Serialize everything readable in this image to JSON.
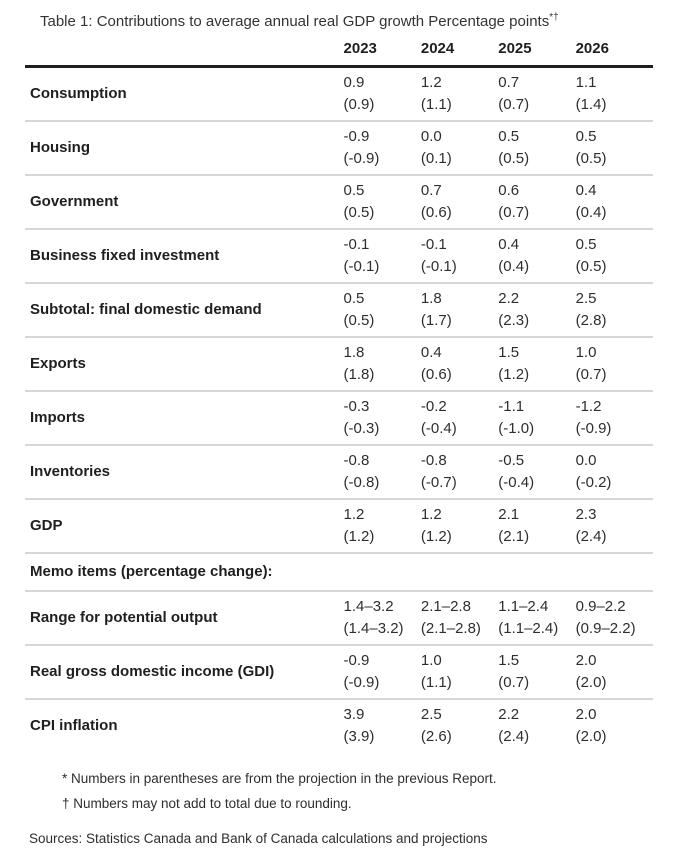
{
  "title": {
    "text": "Table 1: Contributions to average annual real GDP growth Percentage points",
    "superscript": "*†"
  },
  "chart_data": {
    "type": "table",
    "title": "Table 1: Contributions to average annual real GDP growth",
    "units": "Percentage points",
    "footnote_markers": "*†",
    "columns": [
      "2023",
      "2024",
      "2025",
      "2026"
    ],
    "rows": [
      {
        "type": "data",
        "label": "Consumption",
        "current": [
          "0.9",
          "1.2",
          "0.7",
          "1.1"
        ],
        "previous": [
          "(0.9)",
          "(1.1)",
          "(0.7)",
          "(1.4)"
        ]
      },
      {
        "type": "data",
        "label": "Housing",
        "current": [
          "-0.9",
          "0.0",
          "0.5",
          "0.5"
        ],
        "previous": [
          "(-0.9)",
          "(0.1)",
          "(0.5)",
          "(0.5)"
        ]
      },
      {
        "type": "data",
        "label": "Government",
        "current": [
          "0.5",
          "0.7",
          "0.6",
          "0.4"
        ],
        "previous": [
          "(0.5)",
          "(0.6)",
          "(0.7)",
          "(0.4)"
        ]
      },
      {
        "type": "data",
        "label": "Business fixed investment",
        "current": [
          "-0.1",
          "-0.1",
          "0.4",
          "0.5"
        ],
        "previous": [
          "(-0.1)",
          "(-0.1)",
          "(0.4)",
          "(0.5)"
        ]
      },
      {
        "type": "data",
        "label": "Subtotal: final domestic demand",
        "current": [
          "0.5",
          "1.8",
          "2.2",
          "2.5"
        ],
        "previous": [
          "(0.5)",
          "(1.7)",
          "(2.3)",
          "(2.8)"
        ]
      },
      {
        "type": "data",
        "label": "Exports",
        "current": [
          "1.8",
          "0.4",
          "1.5",
          "1.0"
        ],
        "previous": [
          "(1.8)",
          "(0.6)",
          "(1.2)",
          "(0.7)"
        ]
      },
      {
        "type": "data",
        "label": "Imports",
        "current": [
          "-0.3",
          "-0.2",
          "-1.1",
          "-1.2"
        ],
        "previous": [
          "(-0.3)",
          "(-0.4)",
          "(-1.0)",
          "(-0.9)"
        ]
      },
      {
        "type": "data",
        "label": "Inventories",
        "current": [
          "-0.8",
          "-0.8",
          "-0.5",
          "0.0"
        ],
        "previous": [
          "(-0.8)",
          "(-0.7)",
          "(-0.4)",
          "(-0.2)"
        ]
      },
      {
        "type": "data",
        "label": "GDP",
        "current": [
          "1.2",
          "1.2",
          "2.1",
          "2.3"
        ],
        "previous": [
          "(1.2)",
          "(1.2)",
          "(2.1)",
          "(2.4)"
        ]
      },
      {
        "type": "section",
        "label": "Memo items (percentage change):"
      },
      {
        "type": "data",
        "label": "Range for potential output",
        "current": [
          "1.4–3.2",
          "2.1–2.8",
          "1.1–2.4",
          "0.9–2.2"
        ],
        "previous": [
          "(1.4–3.2)",
          "(2.1–2.8)",
          "(1.1–2.4)",
          "(0.9–2.2)"
        ]
      },
      {
        "type": "data",
        "label": "Real gross domestic income (GDI)",
        "current": [
          "-0.9",
          "1.0",
          "1.5",
          "2.0"
        ],
        "previous": [
          "(-0.9)",
          "(1.1)",
          "(0.7)",
          "(2.0)"
        ]
      },
      {
        "type": "data",
        "label": "CPI inflation",
        "current": [
          "3.9",
          "2.5",
          "2.2",
          "2.0"
        ],
        "previous": [
          "(3.9)",
          "(2.6)",
          "(2.4)",
          "(2.0)"
        ]
      }
    ]
  },
  "footnotes": [
    "* Numbers in parentheses are from the projection in the previous Report.",
    "† Numbers may not add to total due to rounding."
  ],
  "sources": "Sources: Statistics Canada and Bank of Canada calculations and projections"
}
